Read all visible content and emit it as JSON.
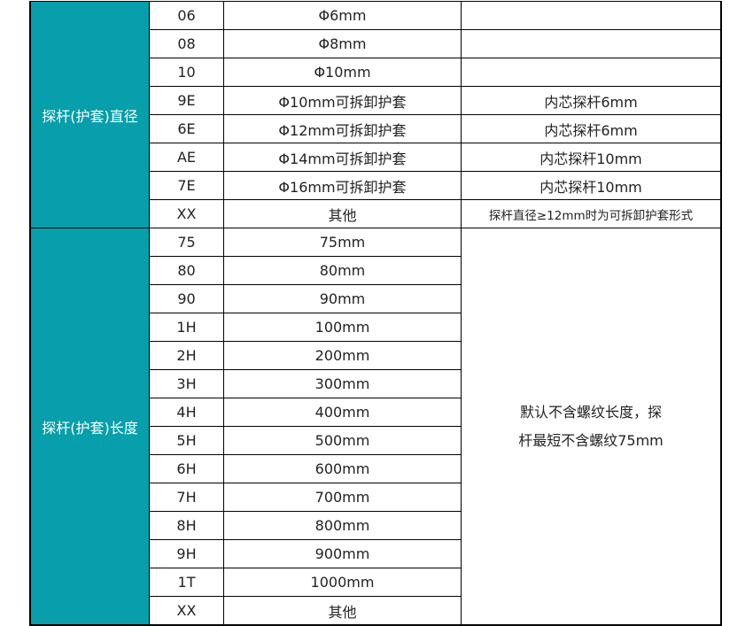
{
  "accent_color": "#069fab",
  "groups": [
    {
      "label": "探杆(护套)直径",
      "rows": [
        {
          "code": "06",
          "desc": "Φ6mm",
          "note": ""
        },
        {
          "code": "08",
          "desc": "Φ8mm",
          "note": ""
        },
        {
          "code": "10",
          "desc": "Φ10mm",
          "note": ""
        },
        {
          "code": "9E",
          "desc": "Φ10mm可拆卸护套",
          "note": "内芯探杆6mm"
        },
        {
          "code": "6E",
          "desc": "Φ12mm可拆卸护套",
          "note": "内芯探杆6mm"
        },
        {
          "code": "AE",
          "desc": "Φ14mm可拆卸护套",
          "note": "内芯探杆10mm"
        },
        {
          "code": "7E",
          "desc": "Φ16mm可拆卸护套",
          "note": "内芯探杆10mm"
        },
        {
          "code": "XX",
          "desc": "其他",
          "note": "探杆直径≥12mm时为可拆卸护套形式"
        }
      ]
    },
    {
      "label": "探杆(护套)长度",
      "note_line1": "默认不含螺纹长度，探",
      "note_line2": "杆最短不含螺纹75mm",
      "rows": [
        {
          "code": "75",
          "desc": "75mm"
        },
        {
          "code": "80",
          "desc": "80mm"
        },
        {
          "code": "90",
          "desc": "90mm"
        },
        {
          "code": "1H",
          "desc": "100mm"
        },
        {
          "code": "2H",
          "desc": "200mm"
        },
        {
          "code": "3H",
          "desc": "300mm"
        },
        {
          "code": "4H",
          "desc": "400mm"
        },
        {
          "code": "5H",
          "desc": "500mm"
        },
        {
          "code": "6H",
          "desc": "600mm"
        },
        {
          "code": "7H",
          "desc": "700mm"
        },
        {
          "code": "8H",
          "desc": "800mm"
        },
        {
          "code": "9H",
          "desc": "900mm"
        },
        {
          "code": "1T",
          "desc": "1000mm"
        },
        {
          "code": "XX",
          "desc": "其他"
        }
      ]
    }
  ]
}
